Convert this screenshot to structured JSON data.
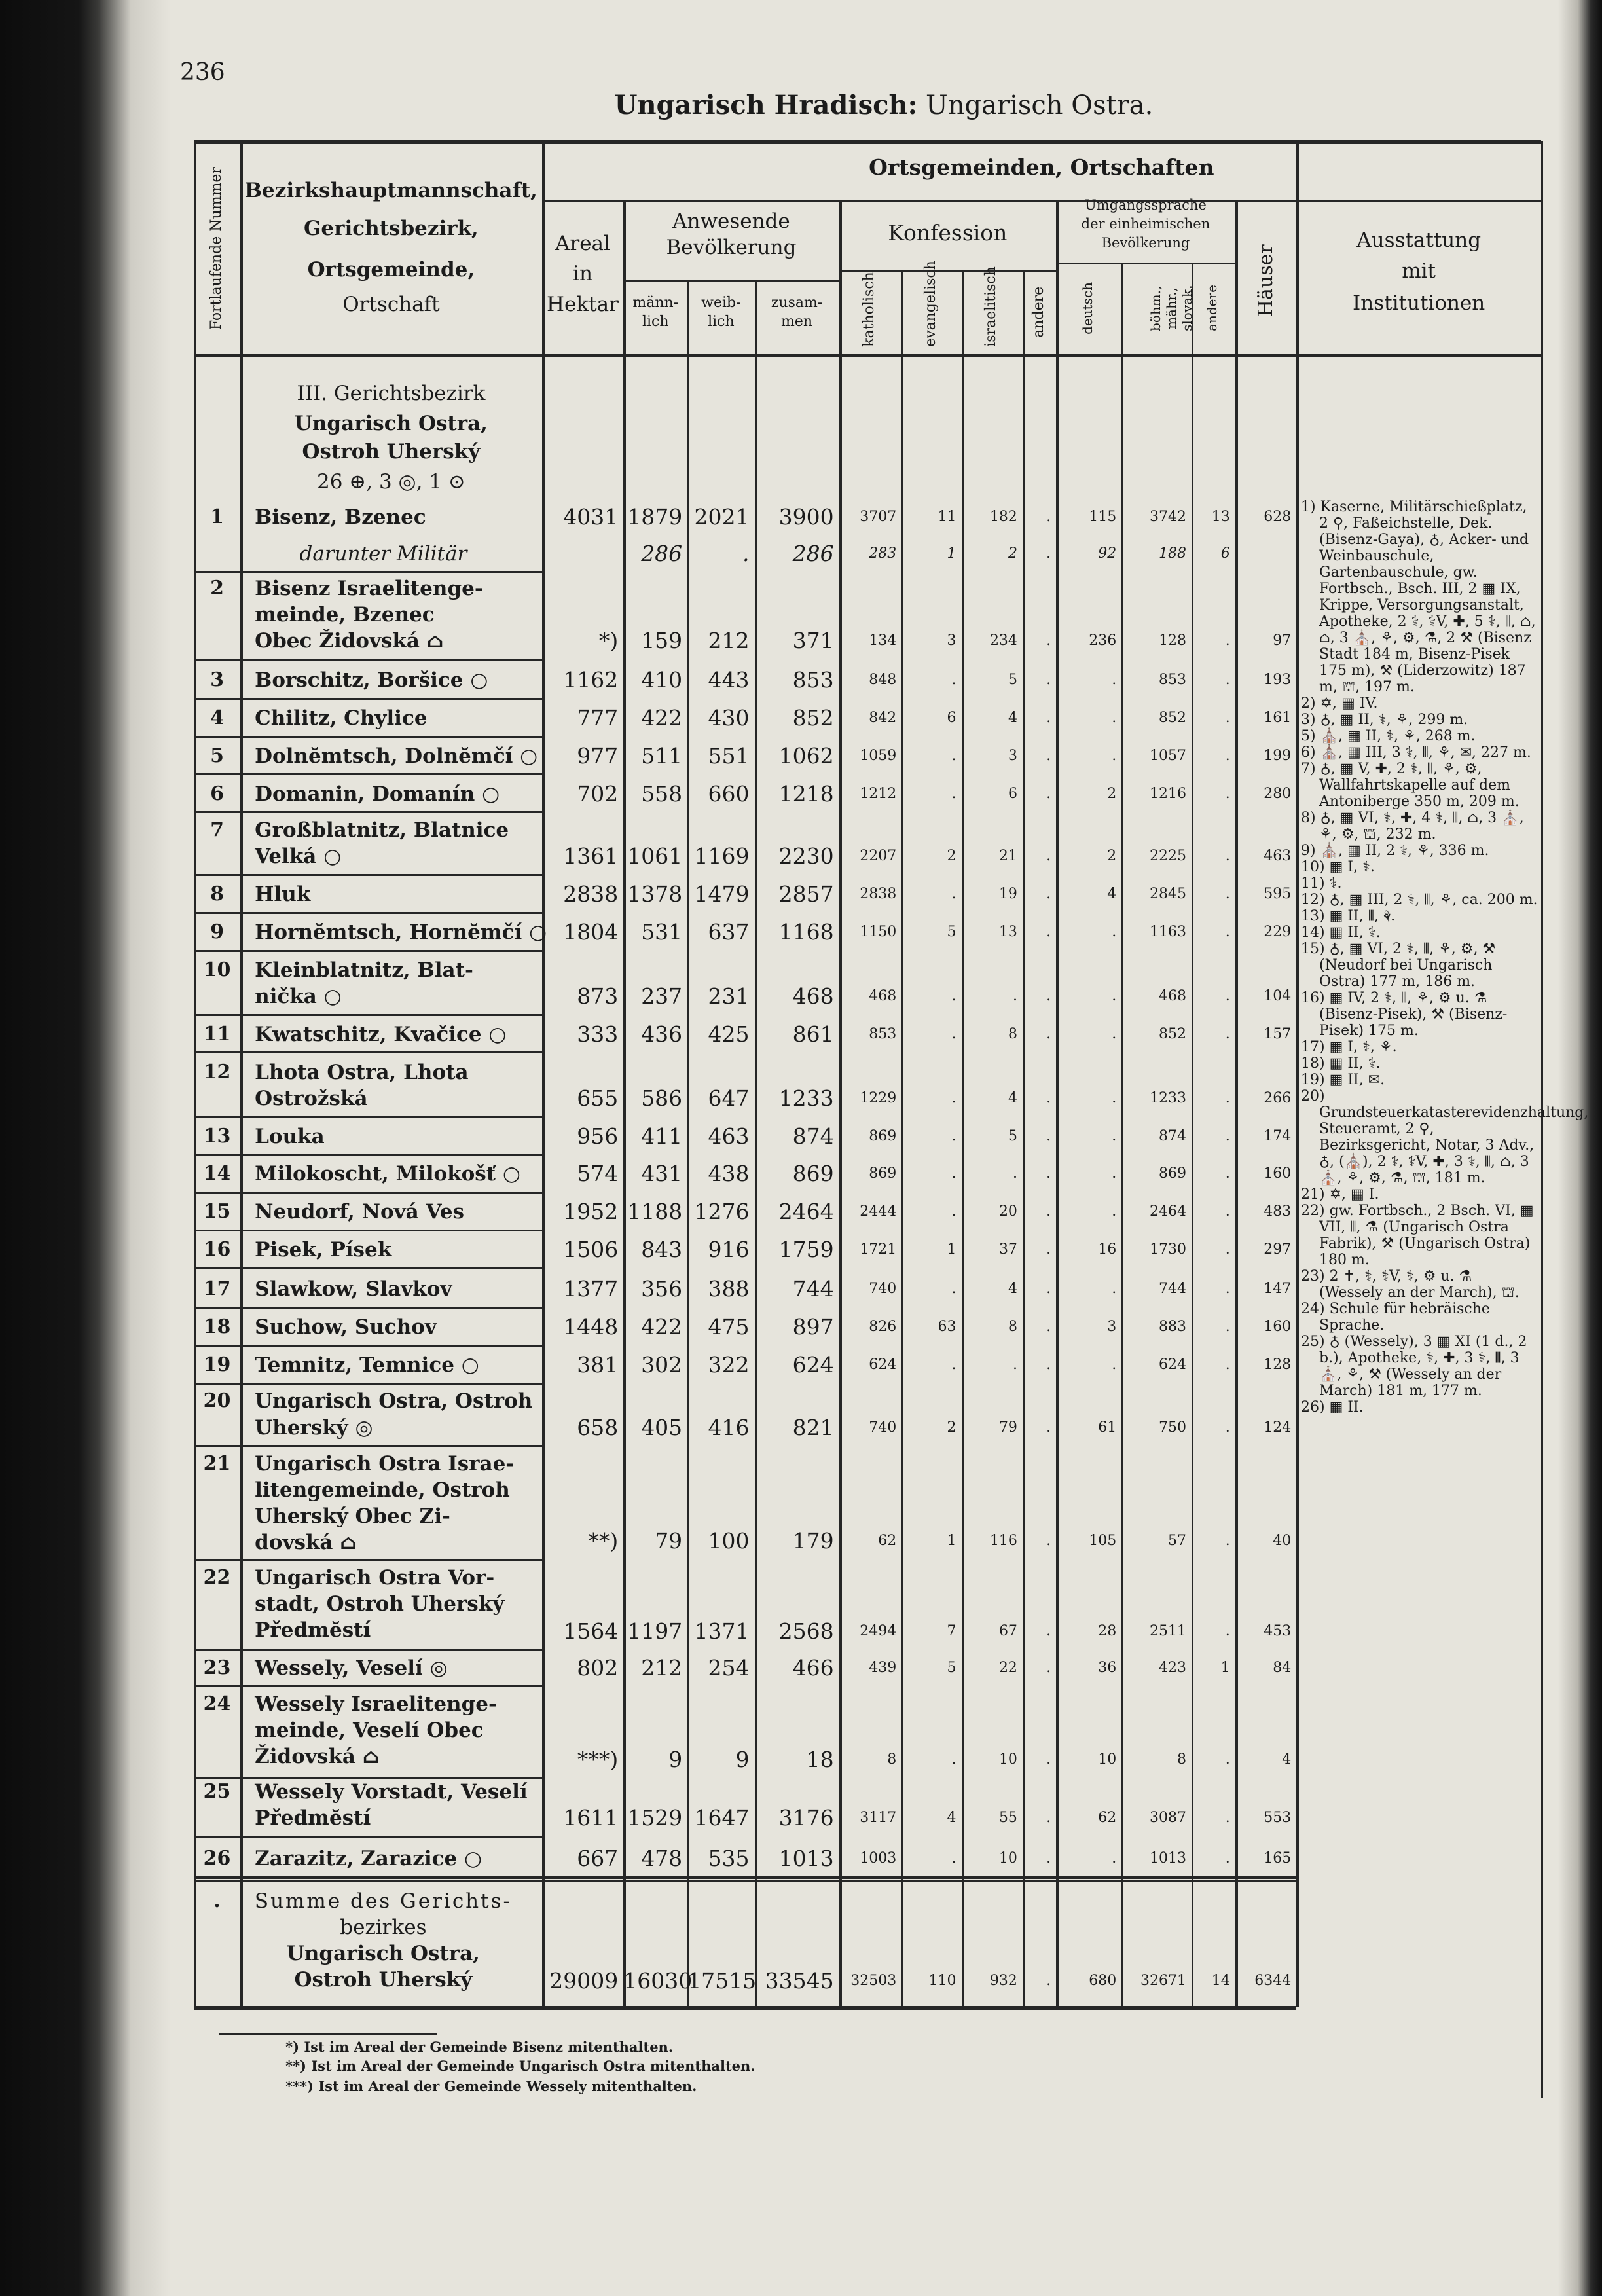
{
  "page_number": "236",
  "title": {
    "bold": "Ungarisch Hradisch:",
    "rest": "Ungarisch Ostra."
  },
  "header": {
    "nr": "Fortlaufende Nummer",
    "name": [
      "Bezirkshauptmannschaft,",
      "Gerichtsbezirk,",
      "Ortsgemeinde,",
      "Ortschaft"
    ],
    "areal": [
      "Areal",
      "in",
      "Hektar"
    ],
    "group": "Ortsgemeinden, Ortschaften",
    "population": [
      "Anwesende",
      "Bevölkerung"
    ],
    "population_cols": [
      [
        "männ-",
        "lich"
      ],
      [
        "weib-",
        "lich"
      ],
      [
        "zusam-",
        "men"
      ]
    ],
    "confession": "Konfession",
    "confession_cols": [
      "katholisch",
      "evangelisch",
      "israelitisch",
      "andere"
    ],
    "language": [
      "Umgangssprache",
      "der einheimischen",
      "Bevölkerung"
    ],
    "language_cols": [
      "deutsch",
      "böhm., mähr., slovak.",
      "andere"
    ],
    "houses": "Häuser",
    "remarks": [
      "Ausstattung",
      "mit",
      "Institutionen"
    ]
  },
  "section": [
    "III. Gerichtsbezirk",
    "Ungarisch Ostra,",
    "Ostroh Uherský",
    "26 ⊕, 3 ◎, 1 ⊙"
  ],
  "rows": [
    {
      "nr": "1",
      "name": [
        "Bisenz, Bzenec"
      ],
      "values": [
        4031,
        1879,
        2021,
        3900,
        3707,
        11,
        182,
        ".",
        115,
        3742,
        13,
        628
      ]
    },
    {
      "name": [
        "darunter Militär"
      ],
      "values": [
        null,
        286,
        ".",
        286,
        283,
        1,
        2,
        ".",
        92,
        188,
        6,
        null
      ]
    },
    {
      "nr": "2",
      "name": [
        "Bisenz Israelitenge-",
        "meinde, Bzenec",
        "Obec Židovská ⌂"
      ],
      "values": [
        "*)",
        159,
        212,
        371,
        134,
        3,
        234,
        ".",
        236,
        128,
        ".",
        97
      ]
    },
    {
      "nr": "3",
      "name": [
        "Borschitz, Boršice ○"
      ],
      "values": [
        1162,
        410,
        443,
        853,
        848,
        ".",
        5,
        ".",
        ".",
        853,
        ".",
        193
      ]
    },
    {
      "nr": "4",
      "name": [
        "Chilitz, Chylice"
      ],
      "values": [
        777,
        422,
        430,
        852,
        842,
        6,
        4,
        ".",
        ".",
        852,
        ".",
        161
      ]
    },
    {
      "nr": "5",
      "name": [
        "Dolnĕmtsch, Dolnĕmčí ○"
      ],
      "values": [
        977,
        511,
        551,
        1062,
        1059,
        ".",
        3,
        ".",
        ".",
        1057,
        ".",
        199
      ]
    },
    {
      "nr": "6",
      "name": [
        "Domanin, Domanín ○"
      ],
      "values": [
        702,
        558,
        660,
        1218,
        1212,
        ".",
        6,
        ".",
        2,
        1216,
        ".",
        280
      ]
    },
    {
      "nr": "7",
      "name": [
        "Großblatnitz, Blatnice",
        "Velká ○"
      ],
      "values": [
        1361,
        1061,
        1169,
        2230,
        2207,
        2,
        21,
        ".",
        2,
        2225,
        ".",
        463
      ]
    },
    {
      "nr": "8",
      "name": [
        "Hluk"
      ],
      "values": [
        2838,
        1378,
        1479,
        2857,
        2838,
        ".",
        19,
        ".",
        4,
        2845,
        ".",
        595
      ]
    },
    {
      "nr": "9",
      "name": [
        "Hornĕmtsch, Hornĕmčí ○"
      ],
      "values": [
        1804,
        531,
        637,
        1168,
        1150,
        5,
        13,
        ".",
        ".",
        1163,
        ".",
        229
      ]
    },
    {
      "nr": "10",
      "name": [
        "Kleinblatnitz, Blat-",
        "nička ○"
      ],
      "values": [
        873,
        237,
        231,
        468,
        468,
        ".",
        ".",
        ".",
        ".",
        468,
        ".",
        104
      ]
    },
    {
      "nr": "11",
      "name": [
        "Kwatschitz, Kvačice ○"
      ],
      "values": [
        333,
        436,
        425,
        861,
        853,
        ".",
        8,
        ".",
        ".",
        852,
        ".",
        157
      ]
    },
    {
      "nr": "12",
      "name": [
        "Lhota Ostra, Lhota",
        "Ostrožská"
      ],
      "values": [
        655,
        586,
        647,
        1233,
        1229,
        ".",
        4,
        ".",
        ".",
        1233,
        ".",
        266
      ]
    },
    {
      "nr": "13",
      "name": [
        "Louka"
      ],
      "values": [
        956,
        411,
        463,
        874,
        869,
        ".",
        5,
        ".",
        ".",
        874,
        ".",
        174
      ]
    },
    {
      "nr": "14",
      "name": [
        "Milokoscht, Milokošť ○"
      ],
      "values": [
        574,
        431,
        438,
        869,
        869,
        ".",
        ".",
        ".",
        ".",
        869,
        ".",
        160
      ]
    },
    {
      "nr": "15",
      "name": [
        "Neudorf, Nová Ves"
      ],
      "values": [
        1952,
        1188,
        1276,
        2464,
        2444,
        ".",
        20,
        ".",
        ".",
        2464,
        ".",
        483
      ]
    },
    {
      "nr": "16",
      "name": [
        "Pisek, Písek"
      ],
      "values": [
        1506,
        843,
        916,
        1759,
        1721,
        1,
        37,
        ".",
        16,
        1730,
        ".",
        297
      ]
    },
    {
      "nr": "17",
      "name": [
        "Slawkow, Slavkov"
      ],
      "values": [
        1377,
        356,
        388,
        744,
        740,
        ".",
        4,
        ".",
        ".",
        744,
        ".",
        147
      ]
    },
    {
      "nr": "18",
      "name": [
        "Suchow, Suchov"
      ],
      "values": [
        1448,
        422,
        475,
        897,
        826,
        63,
        8,
        ".",
        3,
        883,
        ".",
        160
      ]
    },
    {
      "nr": "19",
      "name": [
        "Temnitz, Temnice ○"
      ],
      "values": [
        381,
        302,
        322,
        624,
        624,
        ".",
        ".",
        ".",
        ".",
        624,
        ".",
        128
      ]
    },
    {
      "nr": "20",
      "name": [
        "Ungarisch Ostra, Ostroh",
        "Uherský ◎"
      ],
      "values": [
        658,
        405,
        416,
        821,
        740,
        2,
        79,
        ".",
        61,
        750,
        ".",
        124
      ]
    },
    {
      "nr": "21",
      "name": [
        "Ungarisch Ostra Israe-",
        "litengemeinde, Ostroh",
        "Uherský Obec Zi-",
        "dovská ⌂"
      ],
      "values": [
        "**)",
        79,
        100,
        179,
        62,
        1,
        116,
        ".",
        105,
        57,
        ".",
        40
      ]
    },
    {
      "nr": "22",
      "name": [
        "Ungarisch Ostra Vor-",
        "stadt, Ostroh Uherský",
        "Předmĕstí"
      ],
      "values": [
        1564,
        1197,
        1371,
        2568,
        2494,
        7,
        67,
        ".",
        28,
        2511,
        ".",
        453
      ]
    },
    {
      "nr": "23",
      "name": [
        "Wessely, Veselí ◎"
      ],
      "values": [
        802,
        212,
        254,
        466,
        439,
        5,
        22,
        ".",
        36,
        423,
        1,
        84
      ]
    },
    {
      "nr": "24",
      "name": [
        "Wessely Israelitenge-",
        "meinde, Veselí Obec",
        "Židovská ⌂"
      ],
      "values": [
        "***)",
        9,
        9,
        18,
        8,
        ".",
        10,
        ".",
        10,
        8,
        ".",
        4
      ]
    },
    {
      "nr": "25",
      "name": [
        "Wessely Vorstadt, Veselí",
        "Předmĕstí"
      ],
      "values": [
        1611,
        1529,
        1647,
        3176,
        3117,
        4,
        55,
        ".",
        62,
        3087,
        ".",
        553
      ]
    },
    {
      "nr": "26",
      "name": [
        "Zarazitz, Zarazice ○"
      ],
      "values": [
        667,
        478,
        535,
        1013,
        1003,
        ".",
        10,
        ".",
        ".",
        1013,
        ".",
        165
      ]
    },
    {
      "nr": ".",
      "name": [
        "Summe des Gerichts-",
        "bezirkes",
        "Ungarisch Ostra,",
        "Ostroh Uherský"
      ],
      "values": [
        29009,
        16030,
        17515,
        33545,
        32503,
        110,
        932,
        ".",
        680,
        32671,
        14,
        6344
      ]
    }
  ],
  "remarks": [
    "1) Kaserne, Militärschießplatz, 2 ⚲, Faßeichstelle, Dek. (Bisenz-Gaya), ♁, Acker- und Weinbauschule, Gartenbauschule, gw. Fortbsch., Bsch. III, 2 ▦ IX, Krippe, Versorgungsanstalt, Apotheke, 2 ⚕, ⚕V, ✚, 5 ⚕, ⫴, ⌂, ⌂, 3 ⛪, ⚘, ⚙, ⚗, 2 ⚒ (Bisenz Stadt 184 m, Bisenz-Pisek 175 m), ⚒ (Liderzowitz) 187 m, ⛫, 197 m.",
    "2) ✡, ▦ IV.",
    "3) ♁, ▦ II, ⚕, ⚘, 299 m.",
    "5) ⛪, ▦ II, ⚕, ⚘, 268 m.",
    "6) ⛪, ▦ III, 3 ⚕, ⫴, ⚘, ✉, 227 m.",
    "7) ♁, ▦ V, ✚, 2 ⚕, ⫴, ⚘, ⚙, Wallfahrtskapelle auf dem Antoniberge 350 m, 209 m.",
    "8) ♁, ▦ VI, ⚕, ✚, 4 ⚕, ⫴, ⌂, 3 ⛪, ⚘, ⚙, ⛫, 232 m.",
    "9) ⛪, ▦ II, 2 ⚕, ⚘, 336 m.",
    "10) ▦ I, ⚕.",
    "11) ⚕.",
    "12) ♁, ▦ III, 2 ⚕, ⫴, ⚘, ca. 200 m.",
    "13) ▦ II, ⫴, ⚘.",
    "14) ▦ II, ⚕.",
    "15) ♁, ▦ VI, 2 ⚕, ⫴, ⚘, ⚙, ⚒ (Neudorf bei Ungarisch Ostra) 177 m, 186 m.",
    "16) ▦ IV, 2 ⚕, ⫴, ⚘, ⚙ u. ⚗ (Bisenz-Pisek), ⚒ (Bisenz-Pisek) 175 m.",
    "17) ▦ I, ⚕, ⚘.",
    "18) ▦ II, ⚕.",
    "19) ▦ II, ✉.",
    "20) Grundsteuerkatasterevidenzhaltung, Steueramt, 2 ⚲, Bezirksgericht, Notar, 3 Adv., ♁, (⛪), 2 ⚕, ⚕V, ✚, 3 ⚕, ⫴, ⌂, 3 ⛪, ⚘, ⚙, ⚗, ⛫, 181 m.",
    "21) ✡, ▦ I.",
    "22) gw. Fortbsch., 2 Bsch. VI, ▦ VII, ⫴, ⚗ (Ungarisch Ostra Fabrik), ⚒ (Ungarisch Ostra) 180 m.",
    "23) 2 ✝, ⚕, ⚕V, ⚕, ⚙ u. ⚗ (Wessely an der March), ⛫.",
    "24) Schule für hebräische Sprache.",
    "25) ♁ (Wessely), 3 ▦ XI (1 d., 2 b.), Apotheke, ⚕, ✚, 3 ⚕, ⫴, 3 ⛪, ⚘, ⚒ (Wessely an der March) 181 m, 177 m.",
    "26) ▦ II."
  ],
  "footnotes": [
    "*) Ist im Areal der Gemeinde Bisenz mitenthalten.",
    "**) Ist im Areal der Gemeinde Ungarisch Ostra mitenthalten.",
    "***) Ist im Areal der Gemeinde Wessely mitenthalten."
  ]
}
